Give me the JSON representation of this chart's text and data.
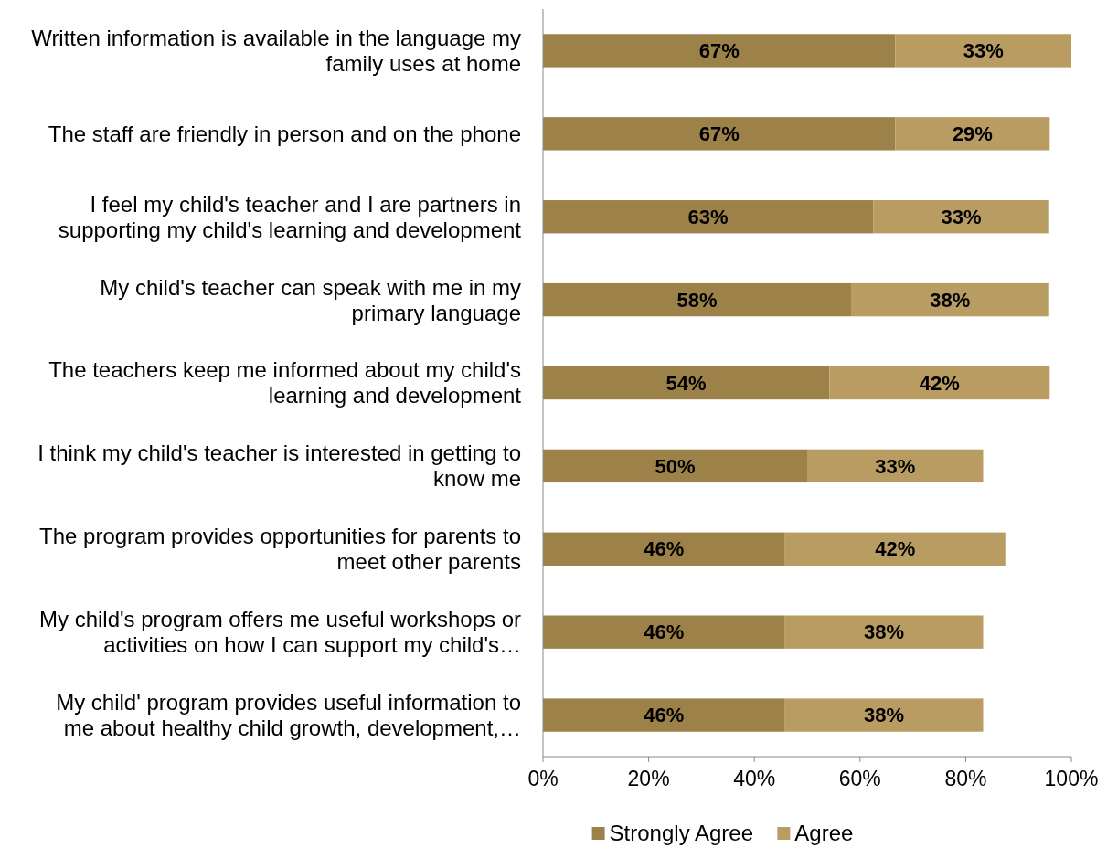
{
  "chart_data": {
    "type": "bar",
    "orientation": "horizontal",
    "stacked": true,
    "categories": [
      "Written information is available in the language my family uses at home",
      "The staff are friendly in person and on the phone",
      "I feel my child's teacher and I are partners in supporting my child's learning and development",
      "My child's teacher can speak with me in my primary language",
      "The teachers keep me informed about my child's learning and development",
      "I think my child's teacher is interested in getting to know me",
      "The program provides opportunities for parents to meet other parents",
      "My child's program offers me useful workshops or activities on how I can support my child's…",
      "My child' program provides useful information to me about healthy child growth, development,…"
    ],
    "series": [
      {
        "name": "Strongly Agree",
        "color": "#9c8248",
        "values": [
          66.7,
          66.7,
          62.5,
          58.3,
          54.2,
          50,
          45.8,
          45.8,
          45.8
        ],
        "value_labels": [
          "67%",
          "67%",
          "63%",
          "58%",
          "54%",
          "50%",
          "46%",
          "46%",
          "46%"
        ]
      },
      {
        "name": "Agree",
        "color": "#b89c62",
        "values": [
          33.3,
          29.2,
          33.3,
          37.5,
          41.7,
          33.3,
          41.7,
          37.5,
          37.5
        ],
        "value_labels": [
          "33%",
          "29%",
          "33%",
          "38%",
          "42%",
          "33%",
          "42%",
          "38%",
          "38%"
        ]
      }
    ],
    "xlim": [
      0,
      100
    ],
    "xticks": [
      {
        "value": 0,
        "label": "0%"
      },
      {
        "value": 20,
        "label": "20%"
      },
      {
        "value": 40,
        "label": "40%"
      },
      {
        "value": 60,
        "label": "60%"
      },
      {
        "value": 80,
        "label": "80%"
      },
      {
        "value": 100,
        "label": "100%"
      }
    ],
    "grid": false,
    "legend": "bottom"
  }
}
